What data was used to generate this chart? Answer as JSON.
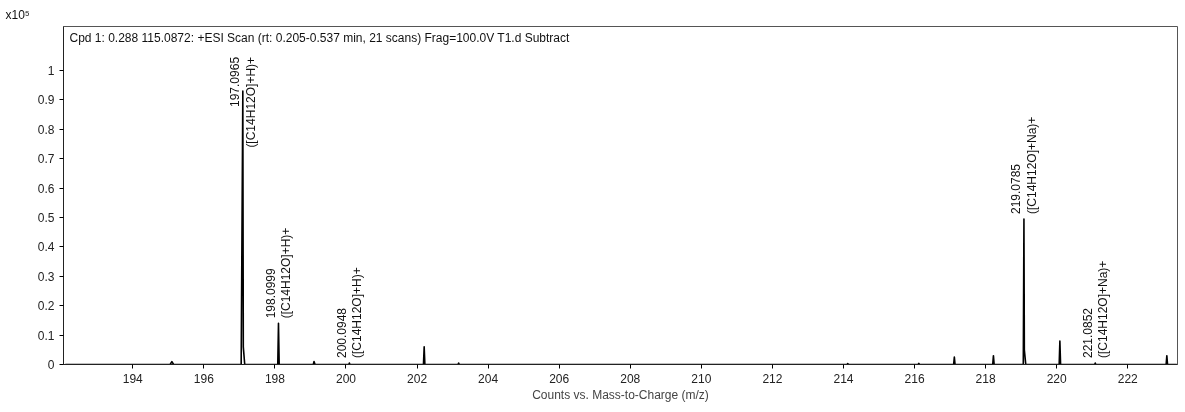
{
  "chart_data": {
    "type": "line",
    "title": "Cpd 1: 0.288 115.0872: +ESI Scan (rt: 0.205-0.537 min, 21 scans) Frag=100.0V T1.d  Subtract",
    "xlabel": "Counts vs. Mass-to-Charge (m/z)",
    "ylabel": "x10⁵",
    "series": [
      {
        "color": "#000000",
        "x": [
          192.1,
          193.0,
          195.05,
          195.1,
          195.15,
          197.05,
          197.0965,
          197.11,
          197.15,
          198.08,
          198.0999,
          198.12,
          199.08,
          199.1,
          199.13,
          200.08,
          200.0948,
          200.11,
          202.18,
          202.2,
          202.22,
          203.15,
          203.17,
          203.19,
          214.1,
          214.12,
          214.14,
          216.1,
          216.12,
          216.14,
          217.1,
          217.12,
          217.14,
          218.2,
          218.22,
          218.24,
          219.06,
          219.0785,
          219.09,
          219.13,
          220.07,
          220.09,
          220.11,
          221.07,
          221.0852,
          221.1,
          223.08,
          223.1,
          223.12,
          223.38
        ],
        "values": [
          0,
          0,
          0,
          0.01,
          0,
          0,
          0.93,
          0.06,
          0,
          0,
          0.14,
          0,
          0,
          0.01,
          0,
          0,
          0.005,
          0,
          0,
          0.06,
          0,
          0,
          0.005,
          0,
          0,
          0.003,
          0,
          0,
          0.004,
          0,
          0,
          0.025,
          0,
          0,
          0.03,
          0,
          0,
          0.495,
          0.05,
          0,
          0,
          0.08,
          0,
          0,
          0.005,
          0,
          0,
          0.03,
          0,
          0
        ]
      }
    ],
    "xlim": [
      192.05,
      223.4
    ],
    "ylim": [
      0,
      1.15
    ],
    "xticks": [
      194,
      196,
      198,
      200,
      202,
      204,
      206,
      208,
      210,
      212,
      214,
      216,
      218,
      220,
      222
    ],
    "yticks": [
      0,
      0.1,
      0.2,
      0.3,
      0.4,
      0.5,
      0.6,
      0.7,
      0.8,
      0.9,
      1
    ],
    "annotations": [
      {
        "text": "197.0965\n([C14H12O]+H)+",
        "x": 197.0965,
        "y": 0.93
      },
      {
        "text": "198.0999\n([C14H12O]+H)+",
        "x": 198.0999,
        "y": 0.14
      },
      {
        "text": "200.0948\n([C14H12O]+H)+",
        "x": 200.0948,
        "y": 0.005
      },
      {
        "text": "219.0785\n([C14H12O]+Na)+",
        "x": 219.0785,
        "y": 0.495
      },
      {
        "text": "221.0852\n([C14H12O]+Na)+",
        "x": 221.0852,
        "y": 0.005
      }
    ]
  }
}
